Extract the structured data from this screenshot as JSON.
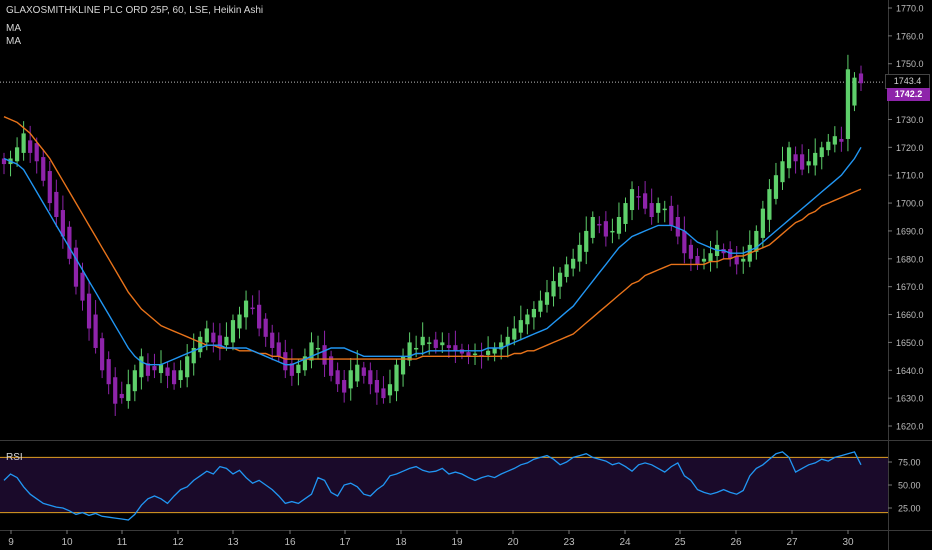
{
  "header": {
    "title": "GLAXOSMITHKLINE PLC ORD 25P, 60, LSE, Heikin Ashi",
    "ma1_label": "MA",
    "ma2_label": "MA",
    "rsi_label": "RSI"
  },
  "price_tags": {
    "last": "1743.4",
    "current": "1742.2"
  },
  "colors": {
    "up": "#5ecf6b",
    "down": "#8e24aa",
    "ma_fast": "#2196f3",
    "ma_slow": "#e8731a",
    "rsi_line": "#2196f3",
    "rsi_band_bg": "#1a0a2a",
    "rsi_bounds": "#e0a020"
  },
  "chart_data": [
    {
      "type": "candlestick",
      "style": "Heikin Ashi",
      "title": "GLAXOSMITHKLINE PLC ORD 25P, 60, LSE, Heikin Ashi",
      "x_tick_labels": [
        "9",
        "10",
        "11",
        "12",
        "13",
        "16",
        "17",
        "18",
        "19",
        "20",
        "23",
        "24",
        "25",
        "26",
        "27",
        "30"
      ],
      "y_tick_labels": [
        "1770.0",
        "1760.0",
        "1750.0",
        "1740.0",
        "1730.0",
        "1720.0",
        "1710.0",
        "1700.0",
        "1690.0",
        "1680.0",
        "1670.0",
        "1660.0",
        "1650.0",
        "1640.0",
        "1630.0",
        "1620.0"
      ],
      "ylim": [
        1616,
        1772
      ],
      "last_price": 1743.4,
      "current_price": 1742.2,
      "closes": [
        1714,
        1716,
        1720,
        1725,
        1718,
        1715,
        1708,
        1700,
        1695,
        1688,
        1680,
        1670,
        1665,
        1655,
        1648,
        1640,
        1635,
        1628,
        1630,
        1635,
        1640,
        1645,
        1638,
        1640,
        1642,
        1638,
        1635,
        1640,
        1645,
        1648,
        1652,
        1655,
        1650,
        1648,
        1652,
        1658,
        1660,
        1665,
        1662,
        1655,
        1652,
        1648,
        1645,
        1640,
        1638,
        1642,
        1645,
        1650,
        1648,
        1642,
        1638,
        1635,
        1632,
        1640,
        1642,
        1638,
        1635,
        1632,
        1630,
        1635,
        1642,
        1645,
        1650,
        1648,
        1652,
        1650,
        1648,
        1650,
        1648,
        1647,
        1646,
        1645,
        1646,
        1645,
        1647,
        1648,
        1650,
        1652,
        1655,
        1658,
        1660,
        1662,
        1665,
        1668,
        1672,
        1675,
        1678,
        1680,
        1685,
        1690,
        1695,
        1692,
        1688,
        1690,
        1695,
        1700,
        1705,
        1702,
        1698,
        1695,
        1700,
        1698,
        1692,
        1688,
        1682,
        1680,
        1678,
        1680,
        1682,
        1685,
        1682,
        1680,
        1678,
        1680,
        1685,
        1690,
        1698,
        1705,
        1710,
        1715,
        1720,
        1715,
        1712,
        1715,
        1718,
        1720,
        1722,
        1724,
        1722,
        1748,
        1745,
        1743
      ],
      "ma_fast": [
        1716,
        1715,
        1714,
        1712,
        1708,
        1704,
        1700,
        1696,
        1692,
        1688,
        1684,
        1680,
        1676,
        1672,
        1668,
        1664,
        1660,
        1656,
        1652,
        1648,
        1645,
        1643,
        1642,
        1642,
        1642,
        1643,
        1644,
        1645,
        1646,
        1647,
        1648,
        1649,
        1649,
        1649,
        1648,
        1648,
        1648,
        1648,
        1647,
        1646,
        1645,
        1644,
        1643,
        1642,
        1642,
        1643,
        1644,
        1645,
        1646,
        1647,
        1648,
        1648,
        1648,
        1647,
        1646,
        1645,
        1645,
        1645,
        1645,
        1645,
        1645,
        1645,
        1645,
        1646,
        1646,
        1647,
        1647,
        1647,
        1647,
        1647,
        1647,
        1647,
        1647,
        1647,
        1648,
        1648,
        1648,
        1649,
        1650,
        1651,
        1652,
        1653,
        1654,
        1655,
        1657,
        1659,
        1661,
        1663,
        1666,
        1669,
        1672,
        1675,
        1678,
        1681,
        1684,
        1686,
        1688,
        1689,
        1690,
        1691,
        1692,
        1692,
        1692,
        1691,
        1690,
        1688,
        1686,
        1685,
        1684,
        1683,
        1683,
        1682,
        1682,
        1682,
        1683,
        1684,
        1686,
        1688,
        1690,
        1692,
        1694,
        1696,
        1698,
        1700,
        1702,
        1704,
        1706,
        1708,
        1710,
        1713,
        1716,
        1720
      ],
      "ma_slow": [
        1731,
        1730,
        1729,
        1727,
        1725,
        1722,
        1719,
        1716,
        1712,
        1708,
        1704,
        1700,
        1696,
        1692,
        1688,
        1684,
        1680,
        1676,
        1672,
        1668,
        1665,
        1662,
        1660,
        1658,
        1656,
        1655,
        1654,
        1653,
        1652,
        1651,
        1650,
        1649,
        1649,
        1648,
        1648,
        1648,
        1647,
        1647,
        1647,
        1646,
        1646,
        1645,
        1645,
        1644,
        1644,
        1644,
        1644,
        1644,
        1644,
        1644,
        1644,
        1644,
        1644,
        1644,
        1644,
        1644,
        1644,
        1644,
        1644,
        1644,
        1644,
        1644,
        1644,
        1644,
        1645,
        1645,
        1645,
        1645,
        1645,
        1645,
        1645,
        1645,
        1645,
        1645,
        1645,
        1645,
        1645,
        1645,
        1646,
        1646,
        1647,
        1647,
        1648,
        1649,
        1650,
        1651,
        1652,
        1653,
        1655,
        1657,
        1659,
        1661,
        1663,
        1665,
        1667,
        1669,
        1671,
        1672,
        1674,
        1675,
        1676,
        1677,
        1678,
        1678,
        1678,
        1678,
        1678,
        1678,
        1679,
        1679,
        1680,
        1680,
        1681,
        1681,
        1682,
        1683,
        1684,
        1685,
        1687,
        1689,
        1691,
        1693,
        1694,
        1696,
        1697,
        1699,
        1700,
        1701,
        1702,
        1703,
        1704,
        1705
      ]
    },
    {
      "type": "line",
      "title": "RSI",
      "y_tick_labels": [
        "75.00",
        "50.00",
        "25.00"
      ],
      "ylim": [
        10,
        90
      ],
      "upper_band": 80,
      "lower_band": 20,
      "values": [
        55,
        62,
        58,
        48,
        40,
        35,
        30,
        28,
        26,
        25,
        22,
        18,
        20,
        17,
        19,
        16,
        15,
        14,
        13,
        12,
        18,
        28,
        35,
        38,
        35,
        30,
        38,
        45,
        48,
        55,
        60,
        65,
        62,
        70,
        68,
        62,
        66,
        58,
        52,
        55,
        50,
        45,
        38,
        30,
        32,
        30,
        35,
        40,
        58,
        55,
        42,
        38,
        50,
        52,
        48,
        40,
        38,
        45,
        50,
        60,
        62,
        65,
        68,
        70,
        66,
        64,
        65,
        68,
        62,
        64,
        62,
        58,
        55,
        58,
        60,
        58,
        62,
        65,
        68,
        72,
        74,
        78,
        80,
        82,
        78,
        72,
        75,
        80,
        82,
        84,
        80,
        78,
        76,
        72,
        74,
        70,
        65,
        72,
        74,
        72,
        68,
        64,
        70,
        74,
        60,
        55,
        45,
        42,
        40,
        42,
        45,
        42,
        40,
        44,
        60,
        68,
        72,
        78,
        84,
        86,
        80,
        64,
        68,
        72,
        74,
        78,
        76,
        80,
        82,
        84,
        86,
        72
      ]
    }
  ]
}
